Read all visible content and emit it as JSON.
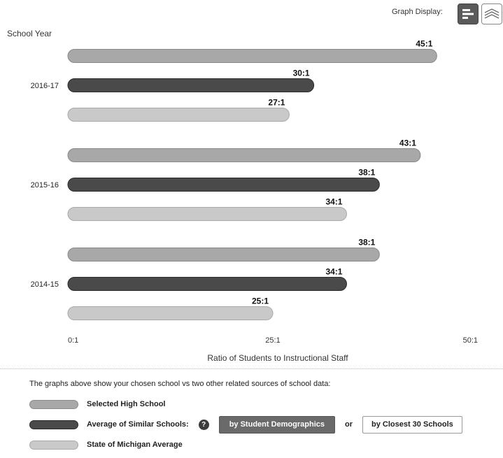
{
  "header": {
    "graph_display_label": "Graph Display:"
  },
  "colors": {
    "selected_school": "#a8a8a8",
    "similar_schools": "#4a4a4a",
    "state_average": "#c9c9c9"
  },
  "chart_data": {
    "type": "bar",
    "orientation": "horizontal",
    "ylabel": "School Year",
    "xlabel": "Ratio of Students to Instructional Staff",
    "xlim": [
      0,
      50
    ],
    "x_ticks": [
      {
        "value": 0,
        "label": "0:1"
      },
      {
        "value": 25,
        "label": "25:1"
      },
      {
        "value": 50,
        "label": "50:1"
      }
    ],
    "categories": [
      "2016-17",
      "2015-16",
      "2014-15"
    ],
    "series": [
      {
        "name": "Selected High School",
        "values": [
          45,
          43,
          38
        ],
        "labels": [
          "45:1",
          "43:1",
          "38:1"
        ]
      },
      {
        "name": "Average of Similar Schools:",
        "values": [
          30,
          38,
          34
        ],
        "labels": [
          "30:1",
          "38:1",
          "34:1"
        ]
      },
      {
        "name": "State of Michigan Average",
        "values": [
          27,
          34,
          25
        ],
        "labels": [
          "27:1",
          "34:1",
          "25:1"
        ]
      }
    ],
    "grid": false,
    "legend": "bottom"
  },
  "legend": {
    "intro": "The graphs above show your chosen school vs two other related sources of school data:",
    "help_icon_glyph": "?",
    "demographics_button": "by Student Demographics",
    "or_text": "or",
    "closest_button": "by Closest 30 Schools"
  }
}
